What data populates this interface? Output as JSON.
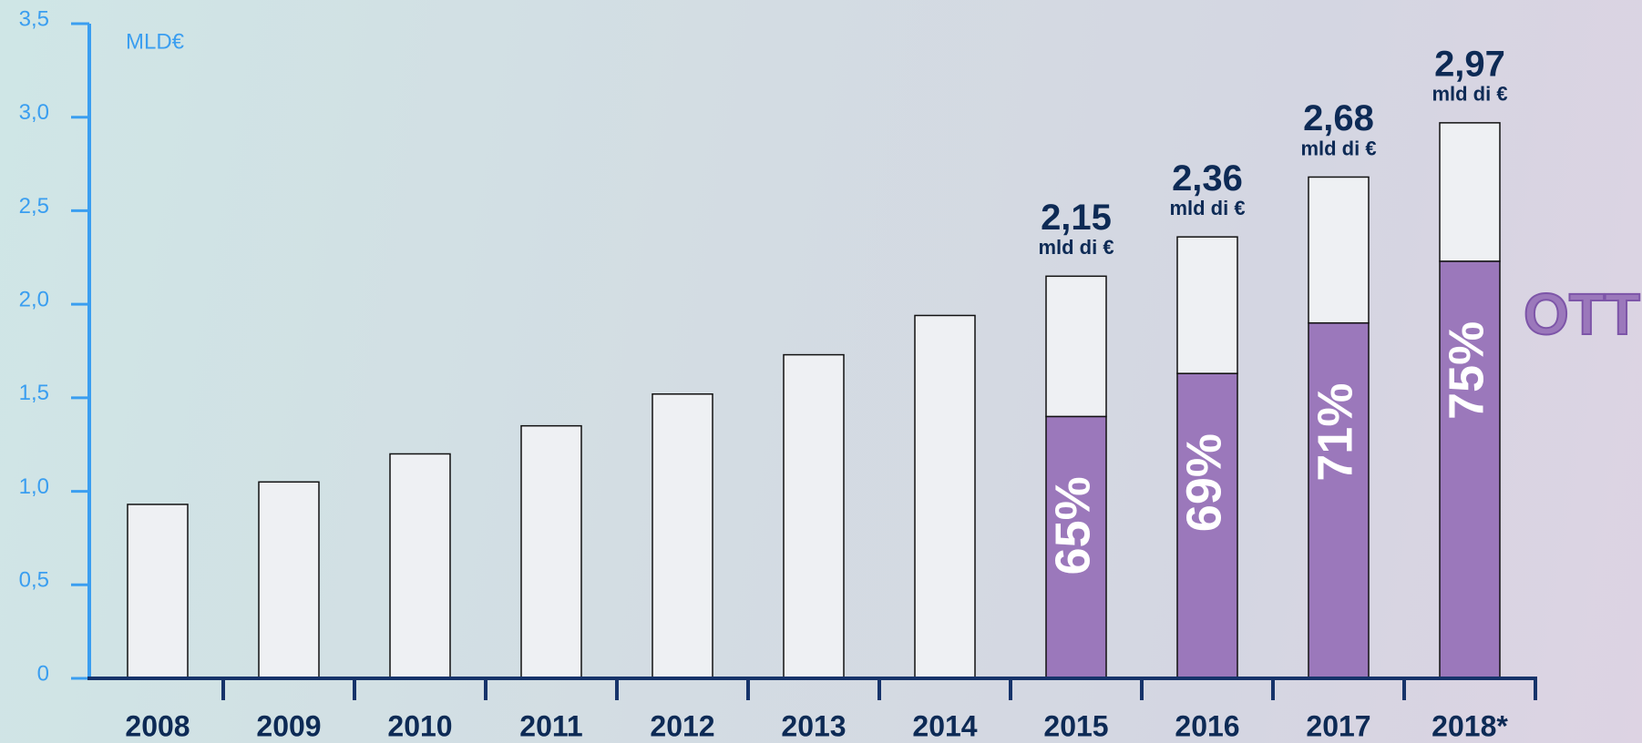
{
  "chart_data": {
    "type": "stacked_bar",
    "unit_label": "MLD€",
    "categories": [
      "2008",
      "2009",
      "2010",
      "2011",
      "2012",
      "2013",
      "2014",
      "2015",
      "2016",
      "2017",
      "2018*"
    ],
    "series": [
      {
        "name": "OTT",
        "color": "#9b78bb",
        "values": [
          null,
          null,
          null,
          null,
          null,
          null,
          null,
          1.4,
          1.63,
          1.9,
          2.23
        ],
        "value_labels": [
          null,
          null,
          null,
          null,
          null,
          null,
          null,
          "65%",
          "69%",
          "71%",
          "75%"
        ]
      },
      {
        "color": "#eef0f3",
        "values": [
          0.93,
          1.05,
          1.2,
          1.35,
          1.52,
          1.73,
          1.94,
          0.75,
          0.73,
          0.78,
          0.74
        ]
      }
    ],
    "annotations": [
      {
        "category": 7,
        "text": "2,15",
        "sub": "mld di €"
      },
      {
        "category": 8,
        "text": "2,36",
        "sub": "mld di €"
      },
      {
        "category": 9,
        "text": "2,68",
        "sub": "mld di €"
      },
      {
        "category": 10,
        "text": "2,97",
        "sub": "mld di €"
      }
    ],
    "ylim": [
      0,
      3.5
    ],
    "yticks": [
      0,
      {
        "value": 0.5,
        "label": "0,5"
      },
      {
        "value": 1.0,
        "label": "1,0"
      },
      {
        "value": 1.5,
        "label": "1,5"
      },
      {
        "value": 2.0,
        "label": "2,0"
      },
      {
        "value": 2.5,
        "label": "2,5"
      },
      {
        "value": 3.0,
        "label": "3,0"
      },
      {
        "value": 3.5,
        "label": "3,5"
      }
    ]
  }
}
